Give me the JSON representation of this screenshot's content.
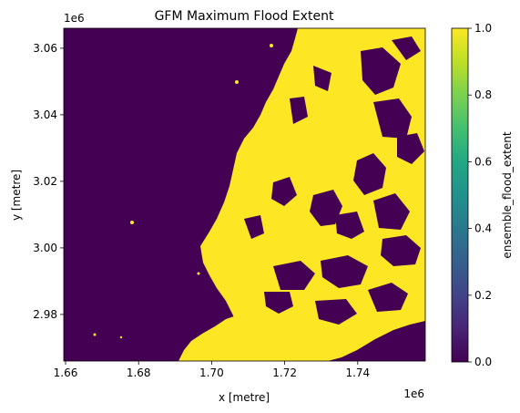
{
  "chart_data": {
    "type": "heatmap",
    "title": "GFM Maximum Flood Extent",
    "xlabel": "x [metre]",
    "ylabel": "y [metre]",
    "x_offset_label": "1e6",
    "y_offset_label": "1e6",
    "xlim": [
      1.6595,
      1.7585
    ],
    "ylim": [
      2.966,
      3.066
    ],
    "x_ticks": [
      {
        "value": 1.66,
        "label": "1.66"
      },
      {
        "value": 1.68,
        "label": "1.68"
      },
      {
        "value": 1.7,
        "label": "1.70"
      },
      {
        "value": 1.72,
        "label": "1.72"
      },
      {
        "value": 1.74,
        "label": "1.74"
      }
    ],
    "y_ticks": [
      {
        "value": 2.98,
        "label": "2.98"
      },
      {
        "value": 3.0,
        "label": "3.00"
      },
      {
        "value": 3.02,
        "label": "3.02"
      },
      {
        "value": 3.04,
        "label": "3.04"
      },
      {
        "value": 3.06,
        "label": "3.06"
      }
    ],
    "colorbar": {
      "label": "ensemble_flood_extent",
      "colormap": "viridis",
      "vmin": 0.0,
      "vmax": 1.0,
      "ticks": [
        {
          "value": 0.0,
          "label": "0.0"
        },
        {
          "value": 0.2,
          "label": "0.2"
        },
        {
          "value": 0.4,
          "label": "0.4"
        },
        {
          "value": 0.6,
          "label": "0.6"
        },
        {
          "value": 0.8,
          "label": "0.8"
        },
        {
          "value": 1.0,
          "label": "1.0"
        }
      ]
    },
    "colors": {
      "not_flooded": "#440154",
      "flooded": "#fde725"
    }
  }
}
